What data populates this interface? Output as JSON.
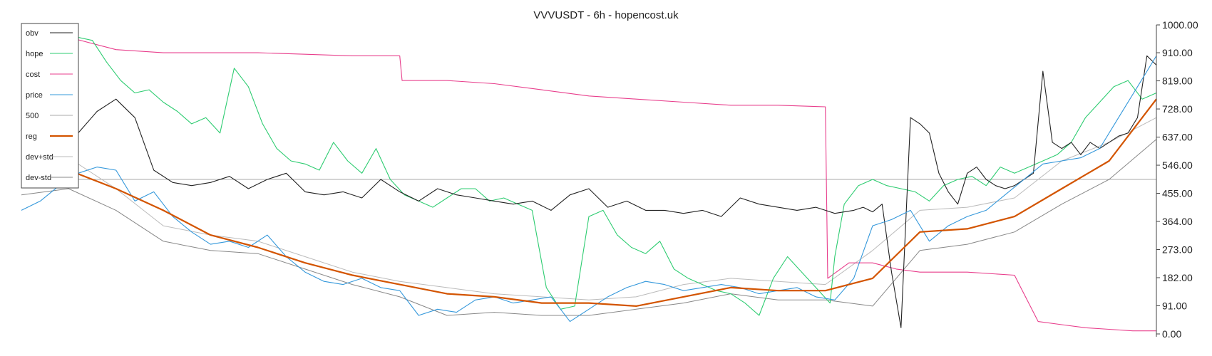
{
  "chart_data": {
    "type": "line",
    "title": "VVVUSDT - 6h - hopencost.uk",
    "xlabel": "",
    "ylabel": "",
    "ylim": [
      0,
      1000
    ],
    "grid": false,
    "y_axis_position": "right",
    "y_ticks": [
      "0.00",
      "91.00",
      "182.00",
      "273.00",
      "364.00",
      "455.00",
      "546.00",
      "637.00",
      "728.00",
      "819.00",
      "910.00",
      "1000.00"
    ],
    "y_tick_values": [
      0,
      91,
      182,
      273,
      364,
      455,
      546,
      637,
      728,
      819,
      910,
      1000
    ],
    "hline": 500,
    "legend_position": "top-left",
    "x": [
      0,
      10,
      20,
      30,
      40,
      50,
      60,
      70,
      80,
      90,
      100,
      110,
      120,
      130,
      140,
      150,
      160,
      170,
      180,
      190,
      200,
      210,
      220,
      230,
      240
    ],
    "series": [
      {
        "name": "obv",
        "color": "#222222",
        "width": 1.1,
        "x": [
          0,
          4,
          8,
          12,
          16,
          20,
          24,
          28,
          32,
          36,
          40,
          44,
          48,
          52,
          56,
          60,
          64,
          68,
          72,
          76,
          80,
          84,
          88,
          92,
          96,
          100,
          104,
          108,
          112,
          116,
          120,
          124,
          128,
          132,
          136,
          140,
          144,
          148,
          152,
          156,
          160,
          164,
          168,
          170,
          172,
          174,
          176,
          178,
          180,
          182,
          184,
          186,
          188,
          190,
          192,
          194,
          196,
          198,
          200,
          202,
          204,
          206,
          208,
          210,
          212,
          214,
          216,
          218,
          220,
          222,
          224,
          226,
          228,
          230,
          232,
          234,
          236,
          238,
          240
        ],
        "values": [
          860,
          770,
          760,
          650,
          720,
          760,
          700,
          530,
          490,
          480,
          490,
          510,
          470,
          500,
          520,
          460,
          450,
          460,
          440,
          500,
          460,
          430,
          470,
          450,
          440,
          430,
          420,
          430,
          400,
          450,
          470,
          410,
          430,
          400,
          400,
          390,
          400,
          380,
          440,
          420,
          410,
          400,
          410,
          400,
          390,
          395,
          400,
          410,
          395,
          420,
          200,
          20,
          700,
          680,
          650,
          520,
          460,
          420,
          520,
          540,
          500,
          480,
          470,
          480,
          500,
          520,
          850,
          620,
          600,
          620,
          580,
          620,
          600,
          620,
          640,
          650,
          700,
          900,
          870
        ]
      },
      {
        "name": "hope",
        "color": "#2ecc71",
        "width": 1.1,
        "x": [
          0,
          3,
          6,
          9,
          12,
          15,
          18,
          21,
          24,
          27,
          30,
          33,
          36,
          39,
          42,
          45,
          48,
          51,
          54,
          57,
          60,
          63,
          66,
          69,
          72,
          75,
          78,
          81,
          84,
          87,
          90,
          93,
          96,
          99,
          102,
          105,
          108,
          111,
          114,
          117,
          120,
          123,
          126,
          129,
          132,
          135,
          138,
          141,
          144,
          147,
          150,
          153,
          156,
          159,
          162,
          165,
          168,
          171,
          172,
          174,
          177,
          180,
          183,
          186,
          189,
          192,
          195,
          198,
          201,
          204,
          207,
          210,
          213,
          216,
          219,
          222,
          225,
          228,
          231,
          234,
          237,
          240
        ],
        "values": [
          980,
          940,
          920,
          900,
          960,
          950,
          880,
          820,
          780,
          790,
          750,
          720,
          680,
          700,
          650,
          860,
          800,
          680,
          600,
          560,
          550,
          530,
          620,
          560,
          520,
          600,
          500,
          450,
          430,
          410,
          440,
          470,
          470,
          430,
          440,
          420,
          400,
          150,
          80,
          90,
          380,
          400,
          320,
          280,
          260,
          300,
          210,
          180,
          160,
          140,
          130,
          100,
          60,
          180,
          250,
          200,
          150,
          100,
          250,
          420,
          480,
          500,
          480,
          470,
          460,
          430,
          480,
          500,
          510,
          480,
          540,
          520,
          540,
          560,
          580,
          620,
          700,
          750,
          800,
          820,
          760,
          780
        ]
      },
      {
        "name": "cost",
        "color": "#e83e8c",
        "width": 1.1,
        "x": [
          0,
          10,
          20,
          30,
          40,
          50,
          60,
          70,
          80,
          80.5,
          90,
          100,
          110,
          120,
          130,
          140,
          150,
          160,
          170,
          170.5,
          175,
          180,
          185,
          190,
          200,
          210,
          211,
          215,
          220,
          225,
          230,
          235,
          240
        ],
        "values": [
          980,
          960,
          920,
          910,
          910,
          910,
          905,
          900,
          900,
          820,
          820,
          810,
          790,
          770,
          760,
          750,
          740,
          740,
          735,
          180,
          230,
          230,
          210,
          200,
          200,
          190,
          160,
          40,
          30,
          20,
          15,
          10,
          10
        ]
      },
      {
        "name": "price",
        "color": "#3498db",
        "width": 1.1,
        "x": [
          0,
          4,
          8,
          12,
          16,
          20,
          24,
          28,
          32,
          36,
          40,
          44,
          48,
          52,
          56,
          60,
          64,
          68,
          72,
          76,
          80,
          84,
          88,
          92,
          96,
          100,
          104,
          108,
          112,
          116,
          120,
          124,
          128,
          132,
          136,
          140,
          144,
          148,
          152,
          156,
          160,
          164,
          168,
          172,
          176,
          180,
          184,
          188,
          192,
          196,
          200,
          204,
          208,
          212,
          216,
          220,
          224,
          228,
          232,
          236,
          240
        ],
        "values": [
          400,
          430,
          480,
          520,
          540,
          530,
          430,
          460,
          380,
          330,
          290,
          300,
          280,
          320,
          250,
          200,
          170,
          160,
          180,
          150,
          140,
          60,
          80,
          70,
          110,
          120,
          100,
          110,
          120,
          40,
          80,
          120,
          150,
          170,
          160,
          140,
          150,
          160,
          150,
          130,
          140,
          150,
          120,
          110,
          180,
          350,
          370,
          400,
          300,
          350,
          380,
          400,
          450,
          500,
          550,
          560,
          570,
          600,
          700,
          800,
          900
        ]
      },
      {
        "name": "500",
        "color": "#aaaaaa",
        "width": 1.0,
        "x": [
          0,
          10,
          20,
          30,
          40,
          50,
          60,
          70,
          80,
          90,
          100,
          110,
          120,
          130,
          140,
          150,
          160,
          170,
          180,
          190,
          200,
          210,
          220,
          230,
          240
        ],
        "values": [
          500,
          500,
          500,
          500,
          500,
          500,
          500,
          500,
          500,
          500,
          500,
          500,
          500,
          500,
          500,
          500,
          500,
          500,
          500,
          500,
          500,
          500,
          500,
          500,
          500
        ]
      },
      {
        "name": "reg",
        "color": "#d35400",
        "width": 2.2,
        "x": [
          0,
          10,
          20,
          30,
          40,
          50,
          60,
          70,
          80,
          90,
          100,
          110,
          120,
          130,
          140,
          150,
          160,
          170,
          180,
          190,
          200,
          210,
          220,
          230,
          240
        ],
        "values": [
          520,
          530,
          470,
          400,
          320,
          280,
          230,
          190,
          160,
          130,
          120,
          100,
          100,
          90,
          120,
          150,
          140,
          140,
          180,
          330,
          340,
          380,
          470,
          560,
          760
        ]
      },
      {
        "name": "dev+std",
        "color": "#bbbbbb",
        "width": 1.0,
        "x": [
          0,
          10,
          20,
          30,
          40,
          50,
          60,
          70,
          80,
          90,
          100,
          110,
          120,
          130,
          140,
          150,
          160,
          170,
          180,
          190,
          200,
          210,
          220,
          230,
          240
        ],
        "values": [
          600,
          570,
          470,
          350,
          320,
          300,
          250,
          200,
          170,
          150,
          130,
          120,
          110,
          120,
          160,
          180,
          170,
          160,
          270,
          400,
          410,
          440,
          560,
          620,
          700
        ]
      },
      {
        "name": "dev-std",
        "color": "#888888",
        "width": 1.0,
        "x": [
          0,
          10,
          20,
          30,
          40,
          50,
          60,
          70,
          80,
          90,
          100,
          110,
          120,
          130,
          140,
          150,
          160,
          170,
          180,
          190,
          200,
          210,
          220,
          230,
          240
        ],
        "values": [
          450,
          470,
          400,
          300,
          270,
          260,
          210,
          160,
          120,
          60,
          70,
          60,
          60,
          80,
          100,
          130,
          110,
          110,
          90,
          270,
          290,
          330,
          420,
          500,
          630
        ]
      }
    ]
  }
}
